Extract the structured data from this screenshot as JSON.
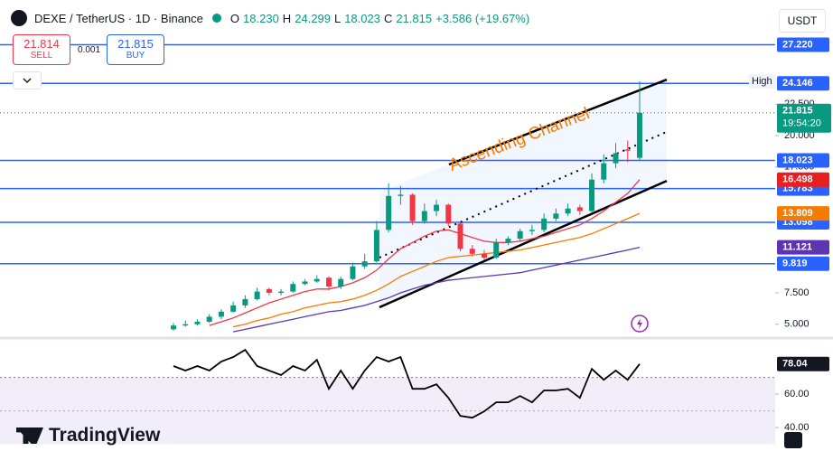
{
  "header": {
    "symbol": "DEXE / TetherUS · 1D · Binance",
    "open_label": "O",
    "open": "18.230",
    "high_label": "H",
    "high": "24.299",
    "low_label": "L",
    "low": "18.023",
    "close_label": "C",
    "close": "21.815",
    "change": "+3.586 (+19.67%)"
  },
  "trade": {
    "sell_price": "21.814",
    "sell": "SELL",
    "spread": "0.001",
    "buy_price": "21.815",
    "buy": "BUY"
  },
  "currency": "USDT",
  "brand": "TradingView",
  "chart_data": [
    {
      "type": "candlestick",
      "up_color": "#089981",
      "down_color": "#f23645",
      "ylim": [
        4.05,
        30.2
      ],
      "yticks": [
        {
          "value": 5,
          "label": "5.000"
        },
        {
          "value": 7.5,
          "label": "7.500"
        },
        {
          "value": 17.5,
          "label": "17.500"
        },
        {
          "value": 20,
          "label": "20.000"
        },
        {
          "value": 22.5,
          "label": "22.500"
        }
      ],
      "open": [
        4.6,
        4.9,
        5.0,
        5.2,
        5.6,
        6.0,
        6.5,
        7.0,
        7.8,
        7.5,
        7.6,
        8.2,
        8.4,
        8.7,
        8.0,
        8.6,
        9.6,
        10.0,
        12.5,
        15.2,
        15.3,
        13.2,
        14.0,
        14.5,
        13.0,
        11.0,
        10.6,
        10.3,
        11.5,
        11.8,
        12.4,
        12.5,
        13.4,
        13.8,
        14.3,
        14.0,
        16.5,
        17.8,
        18.9,
        18.23
      ],
      "high": [
        5.1,
        5.3,
        5.4,
        5.8,
        6.2,
        6.8,
        7.3,
        7.9,
        7.9,
        7.8,
        8.4,
        8.6,
        8.9,
        8.8,
        8.8,
        9.9,
        10.6,
        13.2,
        16.2,
        16.0,
        15.4,
        14.6,
        14.9,
        14.6,
        13.1,
        11.3,
        10.9,
        11.8,
        12.0,
        12.6,
        12.9,
        13.8,
        14.2,
        14.6,
        14.5,
        17.0,
        18.5,
        19.4,
        19.6,
        24.299
      ],
      "low": [
        4.5,
        4.8,
        4.9,
        5.1,
        5.4,
        5.9,
        6.3,
        6.9,
        7.3,
        7.3,
        7.5,
        8.1,
        8.3,
        7.7,
        7.8,
        8.5,
        9.4,
        9.9,
        12.3,
        14.5,
        12.9,
        13.0,
        13.6,
        12.8,
        10.8,
        10.4,
        10.1,
        10.2,
        11.3,
        11.6,
        12.1,
        12.3,
        13.2,
        13.6,
        13.7,
        13.9,
        16.2,
        17.4,
        17.9,
        18.023
      ],
      "close": [
        4.9,
        5.0,
        5.2,
        5.6,
        6.0,
        6.5,
        7.0,
        7.6,
        7.5,
        7.6,
        8.2,
        8.4,
        8.6,
        8.0,
        8.6,
        9.6,
        10.0,
        12.5,
        15.2,
        15.3,
        13.2,
        14.0,
        14.5,
        13.0,
        11.0,
        10.6,
        10.3,
        11.5,
        11.8,
        12.4,
        12.5,
        13.4,
        13.8,
        14.2,
        14.0,
        16.5,
        17.8,
        18.6,
        18.8,
        21.815
      ],
      "overlays": [
        {
          "color": "#f23645",
          "values": [
            null,
            null,
            null,
            4.9,
            5.2,
            5.5,
            5.9,
            6.3,
            6.7,
            7.0,
            7.3,
            7.6,
            7.8,
            7.8,
            8.0,
            8.3,
            8.7,
            9.3,
            10.2,
            11.0,
            11.5,
            12.0,
            12.4,
            12.5,
            12.2,
            11.9,
            11.6,
            11.5,
            11.5,
            11.6,
            11.8,
            12.0,
            12.3,
            12.6,
            12.9,
            13.4,
            14.0,
            14.7,
            15.4,
            16.498
          ]
        },
        {
          "color": "#f57c00",
          "values": [
            null,
            null,
            null,
            null,
            null,
            4.8,
            5.0,
            5.3,
            5.5,
            5.8,
            6.0,
            6.3,
            6.5,
            6.7,
            6.8,
            7.0,
            7.3,
            7.7,
            8.2,
            8.8,
            9.2,
            9.6,
            10.0,
            10.3,
            10.4,
            10.5,
            10.6,
            10.7,
            10.8,
            10.9,
            11.1,
            11.3,
            11.5,
            11.7,
            11.9,
            12.2,
            12.6,
            13.0,
            13.4,
            13.809
          ]
        },
        {
          "color": "#5e35b1",
          "values": [
            null,
            null,
            null,
            null,
            null,
            4.4,
            4.6,
            4.8,
            5.0,
            5.2,
            5.4,
            5.6,
            5.8,
            6.0,
            6.1,
            6.3,
            6.5,
            6.8,
            7.1,
            7.5,
            7.8,
            8.1,
            8.3,
            8.5,
            8.6,
            8.7,
            8.8,
            8.9,
            9.0,
            9.1,
            9.3,
            9.5,
            9.7,
            9.9,
            10.1,
            10.3,
            10.5,
            10.7,
            10.9,
            11.121
          ]
        }
      ],
      "level_color": "#2962ff",
      "levels": [
        {
          "value": 27.22,
          "label": "27.220"
        },
        24.146,
        18.023,
        15.783,
        13.098,
        9.819
      ],
      "trendlines": [
        {
          "style": "solid",
          "x": [
            23.05,
            41.27
          ],
          "y": [
            17.7,
            24.45
          ]
        },
        {
          "style": "dotted",
          "x": [
            17.23,
            41.27
          ],
          "y": [
            10.3,
            20.3
          ]
        },
        {
          "style": "solid",
          "x": [
            17.23,
            41.27
          ],
          "y": [
            6.35,
            16.4
          ]
        }
      ],
      "annotation": "Ascending Channel",
      "countdown": "19:54:20",
      "high_marker": {
        "label": "High",
        "value": 24.299
      }
    },
    {
      "type": "line",
      "color": "#000000",
      "ylim": [
        26,
        91.4
      ],
      "yticks": [
        {
          "value": 60,
          "label": "60.00"
        },
        {
          "value": 40,
          "label": "40.00"
        }
      ],
      "band": [
        30,
        70
      ],
      "midline": 50,
      "values": [
        76.8,
        74.1,
        76.8,
        74.1,
        79.5,
        82.2,
        86.5,
        76.8,
        74.1,
        71.4,
        76.8,
        74.1,
        80.5,
        63.2,
        74.1,
        63.2,
        74.1,
        82.2,
        79.5,
        82.2,
        63.2,
        63.2,
        65.9,
        57.8,
        47.0,
        45.9,
        49.7,
        55.1,
        55.1,
        58.9,
        55.1,
        62.2,
        62.2,
        63.2,
        57.8,
        75.1,
        68.6,
        74.1,
        68.6,
        78.04
      ]
    }
  ]
}
